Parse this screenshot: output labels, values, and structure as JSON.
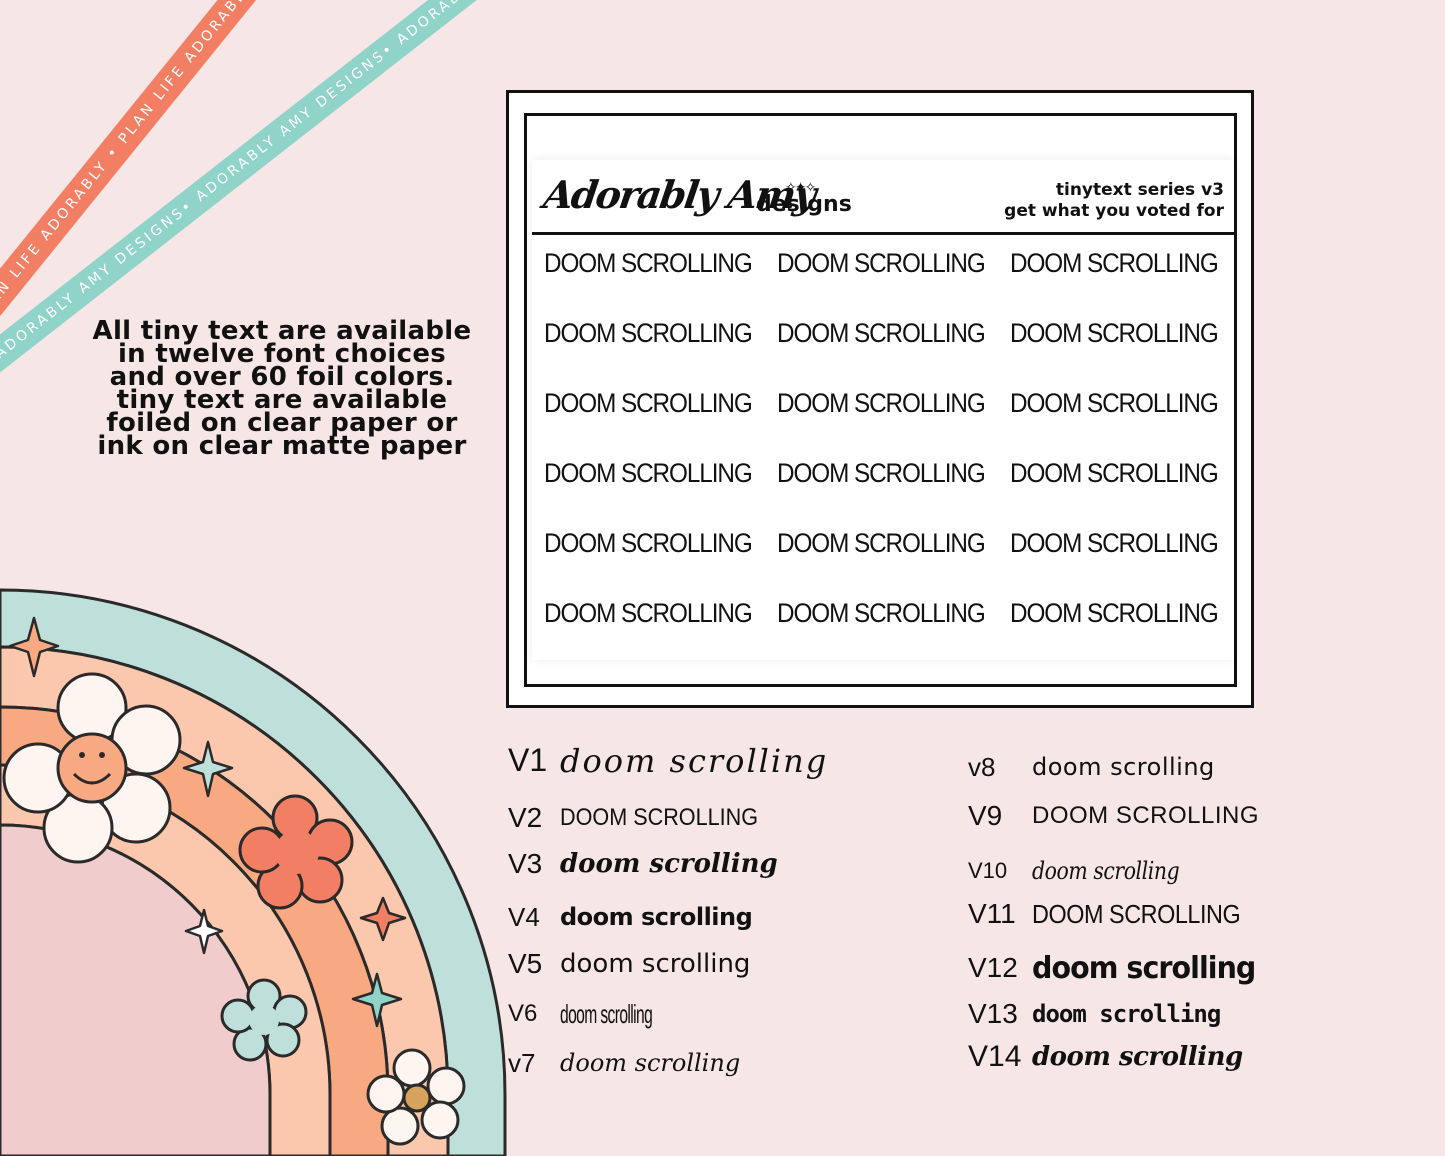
{
  "ribbons": {
    "orange": "Plan Life Adorably • Plan Life Adorably • Plan Life Adorably • Plan Life Adorably",
    "teal": "Adorably Amy Designs• Adorably Amy Designs• Adorably Amy Designs• Adorably Amy Designs"
  },
  "info_text": "All tiny text are available in twelve font choices and over 60 foil colors.  tiny text are available foiled on clear paper or ink on clear matte paper",
  "sheet": {
    "brand_script": "Adorably Amy",
    "brand_word": "designs",
    "series_line1": "tinytext series v3",
    "series_line2": "get what you voted for",
    "stickers": [
      "DOOM SCROLLING",
      "DOOM SCROLLING",
      "DOOM SCROLLING",
      "DOOM SCROLLING",
      "DOOM SCROLLING",
      "DOOM SCROLLING",
      "DOOM SCROLLING",
      "DOOM SCROLLING",
      "DOOM SCROLLING",
      "DOOM SCROLLING",
      "DOOM SCROLLING",
      "DOOM SCROLLING",
      "DOOM SCROLLING",
      "DOOM SCROLLING",
      "DOOM SCROLLING",
      "DOOM SCROLLING",
      "DOOM SCROLLING",
      "DOOM SCROLLING"
    ]
  },
  "versions_left": [
    {
      "label": "V1",
      "text": "doom scrolling"
    },
    {
      "label": "V2",
      "text": "DOOM SCROLLING"
    },
    {
      "label": "V3",
      "text": "doom scrolling"
    },
    {
      "label": "V4",
      "text": "doom scrolling"
    },
    {
      "label": "V5",
      "text": "doom scrolling"
    },
    {
      "label": "V6",
      "text": "doom scrolling"
    },
    {
      "label": "v7",
      "text": "doom scrolling"
    }
  ],
  "versions_right": [
    {
      "label": "v8",
      "text": "doom scrolling"
    },
    {
      "label": "V9",
      "text": "DOOM SCROLLING"
    },
    {
      "label": "V10",
      "text": "doom scrolling"
    },
    {
      "label": "V11",
      "text": "DOOM SCROLLING"
    },
    {
      "label": "V12",
      "text": "doom scrolling"
    },
    {
      "label": "V13",
      "text": "doom scrolling"
    },
    {
      "label": "V14",
      "text": "doom scrolling"
    }
  ],
  "colors": {
    "background": "#f7e6e6",
    "orange": "#f27f63",
    "teal": "#8fd3c9",
    "peach": "#f9a982",
    "light_peach": "#fbc7ad",
    "pink": "#f0cccc"
  }
}
